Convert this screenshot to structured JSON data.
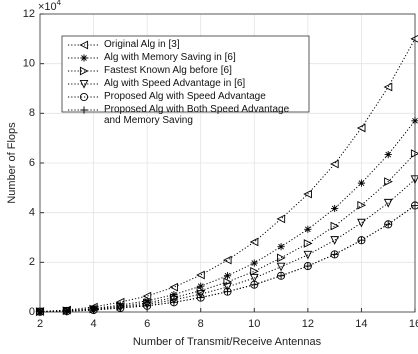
{
  "chart_data": {
    "type": "line",
    "y_scale_base": "×10",
    "y_scale_exponent": "4",
    "xlabel": "Number of Transmit/Receive Antennas",
    "ylabel": "Number of Flops",
    "x": [
      2,
      3,
      4,
      5,
      6,
      7,
      8,
      9,
      10,
      11,
      12,
      13,
      14,
      15,
      16
    ],
    "series": [
      {
        "name": "Original Alg in [3]",
        "color": "#000000",
        "marker": "triangle-left",
        "values": [
          0.02,
          0.08,
          0.2,
          0.4,
          0.64,
          1.0,
          1.49,
          2.09,
          2.82,
          3.75,
          4.75,
          5.96,
          7.41,
          9.06,
          11.0
        ]
      },
      {
        "name": "Alg with Memory Saving in [6]",
        "color": "#000000",
        "marker": "asterisk",
        "values": [
          0.01,
          0.06,
          0.14,
          0.28,
          0.45,
          0.7,
          1.04,
          1.46,
          1.97,
          2.63,
          3.33,
          4.17,
          5.19,
          6.34,
          7.7
        ]
      },
      {
        "name": "Fastest Known Alg before [6]",
        "color": "#000000",
        "marker": "triangle-right",
        "values": [
          0.01,
          0.05,
          0.12,
          0.23,
          0.37,
          0.58,
          0.86,
          1.21,
          1.64,
          2.18,
          2.76,
          3.46,
          4.3,
          5.25,
          6.38
        ]
      },
      {
        "name": "Alg with Speed Advantage in [6]",
        "color": "#000000",
        "marker": "triangle-down",
        "values": [
          0.01,
          0.04,
          0.1,
          0.19,
          0.31,
          0.49,
          0.72,
          1.01,
          1.37,
          1.82,
          2.3,
          2.89,
          3.59,
          4.39,
          5.34
        ]
      },
      {
        "name": "Proposed Alg with Speed Advantage",
        "color": "#000000",
        "marker": "circle",
        "values": [
          0.01,
          0.03,
          0.08,
          0.16,
          0.25,
          0.39,
          0.58,
          0.82,
          1.1,
          1.46,
          1.85,
          2.32,
          2.89,
          3.53,
          4.29
        ]
      },
      {
        "name": "Proposed Alg with Both Speed Advantage and Memory Saving",
        "color": "#000000",
        "marker": "plus",
        "values": [
          0.01,
          0.03,
          0.08,
          0.16,
          0.25,
          0.39,
          0.58,
          0.82,
          1.1,
          1.46,
          1.85,
          2.32,
          2.89,
          3.53,
          4.29
        ]
      }
    ],
    "xlim": [
      2,
      16
    ],
    "xticks": [
      2,
      4,
      6,
      8,
      10,
      12,
      14,
      16
    ],
    "ylim": [
      0,
      12
    ],
    "yticks": [
      0,
      2,
      4,
      6,
      8,
      10,
      12
    ],
    "grid": true,
    "legend": "upper-left"
  }
}
